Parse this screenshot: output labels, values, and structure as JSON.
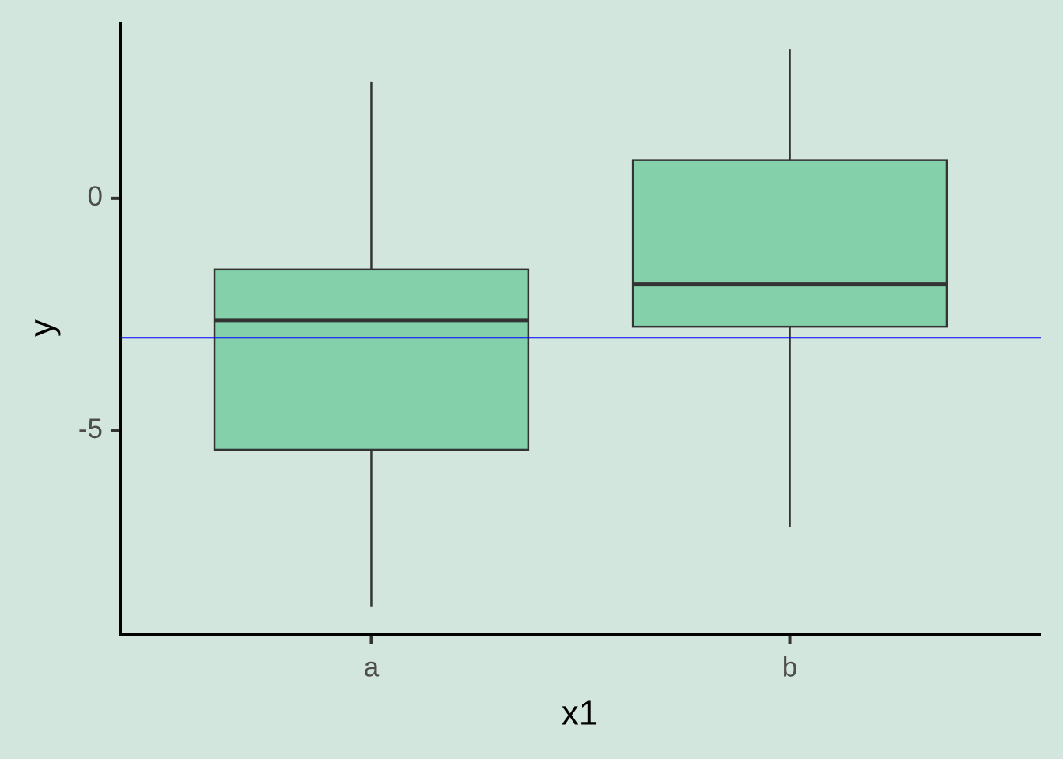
{
  "chart_data": {
    "type": "box",
    "x_label": "x1",
    "y_label": "y",
    "categories": [
      "a",
      "b"
    ],
    "min": [
      -8.79,
      -7.06
    ],
    "q1": [
      -5.41,
      -2.76
    ],
    "median": [
      -2.62,
      -1.85
    ],
    "q3": [
      -1.53,
      0.82
    ],
    "max": [
      2.5,
      3.21
    ],
    "fill": "#84d0aa",
    "edge_color": "#333333",
    "background": "#d3e6de",
    "hline": {
      "value": -3,
      "color": "#0000ff"
    },
    "ylim": [
      -9.39,
      3.79
    ],
    "yticks": [
      -5,
      0
    ],
    "grid": false
  }
}
